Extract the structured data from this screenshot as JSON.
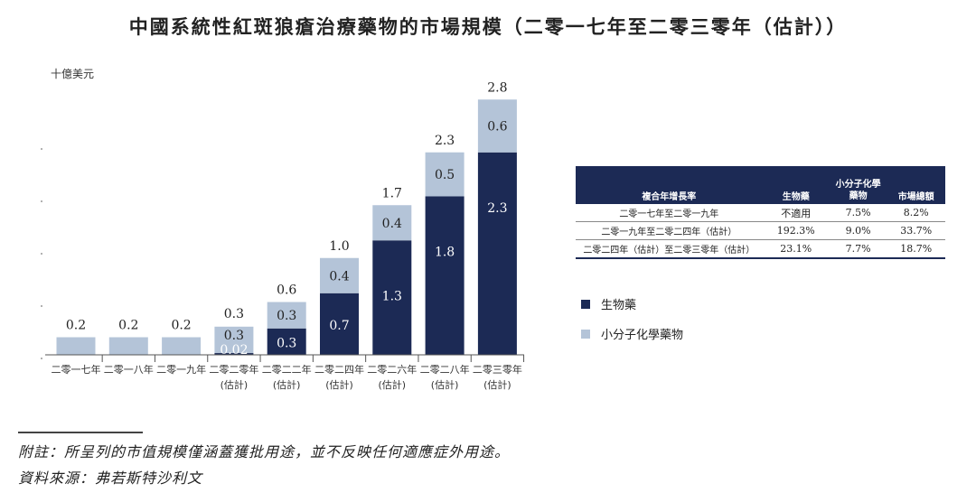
{
  "title": "中國系統性紅斑狼瘡治療藥物的市場規模（二零一七年至二零三零年（估計））",
  "colors": {
    "biologics": "#1c2a55",
    "small_molecule": "#b4c4d8"
  },
  "chart_data": {
    "type": "bar",
    "stacked": true,
    "unit": "十億美元",
    "categories": [
      [
        "二零一七年"
      ],
      [
        "二零一八年"
      ],
      [
        "二零一九年"
      ],
      [
        "二零二零年",
        "(估計)"
      ],
      [
        "二零二二年",
        "(估計)"
      ],
      [
        "二零二四年",
        "(估計)"
      ],
      [
        "二零二六年",
        "(估計)"
      ],
      [
        "二零二八年",
        "(估計)"
      ],
      [
        "二零三零年",
        "(估計)"
      ]
    ],
    "series": [
      {
        "name": "生物藥",
        "values": [
          0,
          0,
          0,
          0.02,
          0.3,
          0.7,
          1.3,
          1.8,
          2.3
        ],
        "labels": [
          "",
          "",
          "",
          "0.02",
          "0.3",
          "0.7",
          "1.3",
          "1.8",
          "2.3"
        ]
      },
      {
        "name": "小分子化學藥物",
        "values": [
          0.2,
          0.2,
          0.2,
          0.3,
          0.3,
          0.4,
          0.4,
          0.5,
          0.6
        ],
        "labels": [
          "0.2",
          "0.2",
          "0.2",
          "0.3",
          "0.3",
          "0.4",
          "0.4",
          "0.5",
          "0.6"
        ]
      }
    ],
    "totals": [
      "0.2",
      "0.2",
      "0.2",
      "0.3",
      "0.6",
      "1.0",
      "1.7",
      "2.3",
      "2.8"
    ],
    "ylim": [
      0,
      2.8
    ],
    "grid": false,
    "legend_position": "right"
  },
  "table": {
    "headers": [
      "複合年增長率",
      "生物藥",
      "小分子化學藥物",
      "市場總額"
    ],
    "rows": [
      [
        "二零一七年至二零一九年",
        "不適用",
        "7.5%",
        "8.2%"
      ],
      [
        "二零一九年至二零二四年（估計）",
        "192.3%",
        "9.0%",
        "33.7%"
      ],
      [
        "二零二四年（估計）至二零三零年（估計）",
        "23.1%",
        "7.7%",
        "18.7%"
      ]
    ]
  },
  "footnotes": {
    "note": "附註：所呈列的市值規模僅涵蓋獲批用途，並不反映任何適應症外用途。",
    "source": "資料來源：弗若斯特沙利文"
  }
}
